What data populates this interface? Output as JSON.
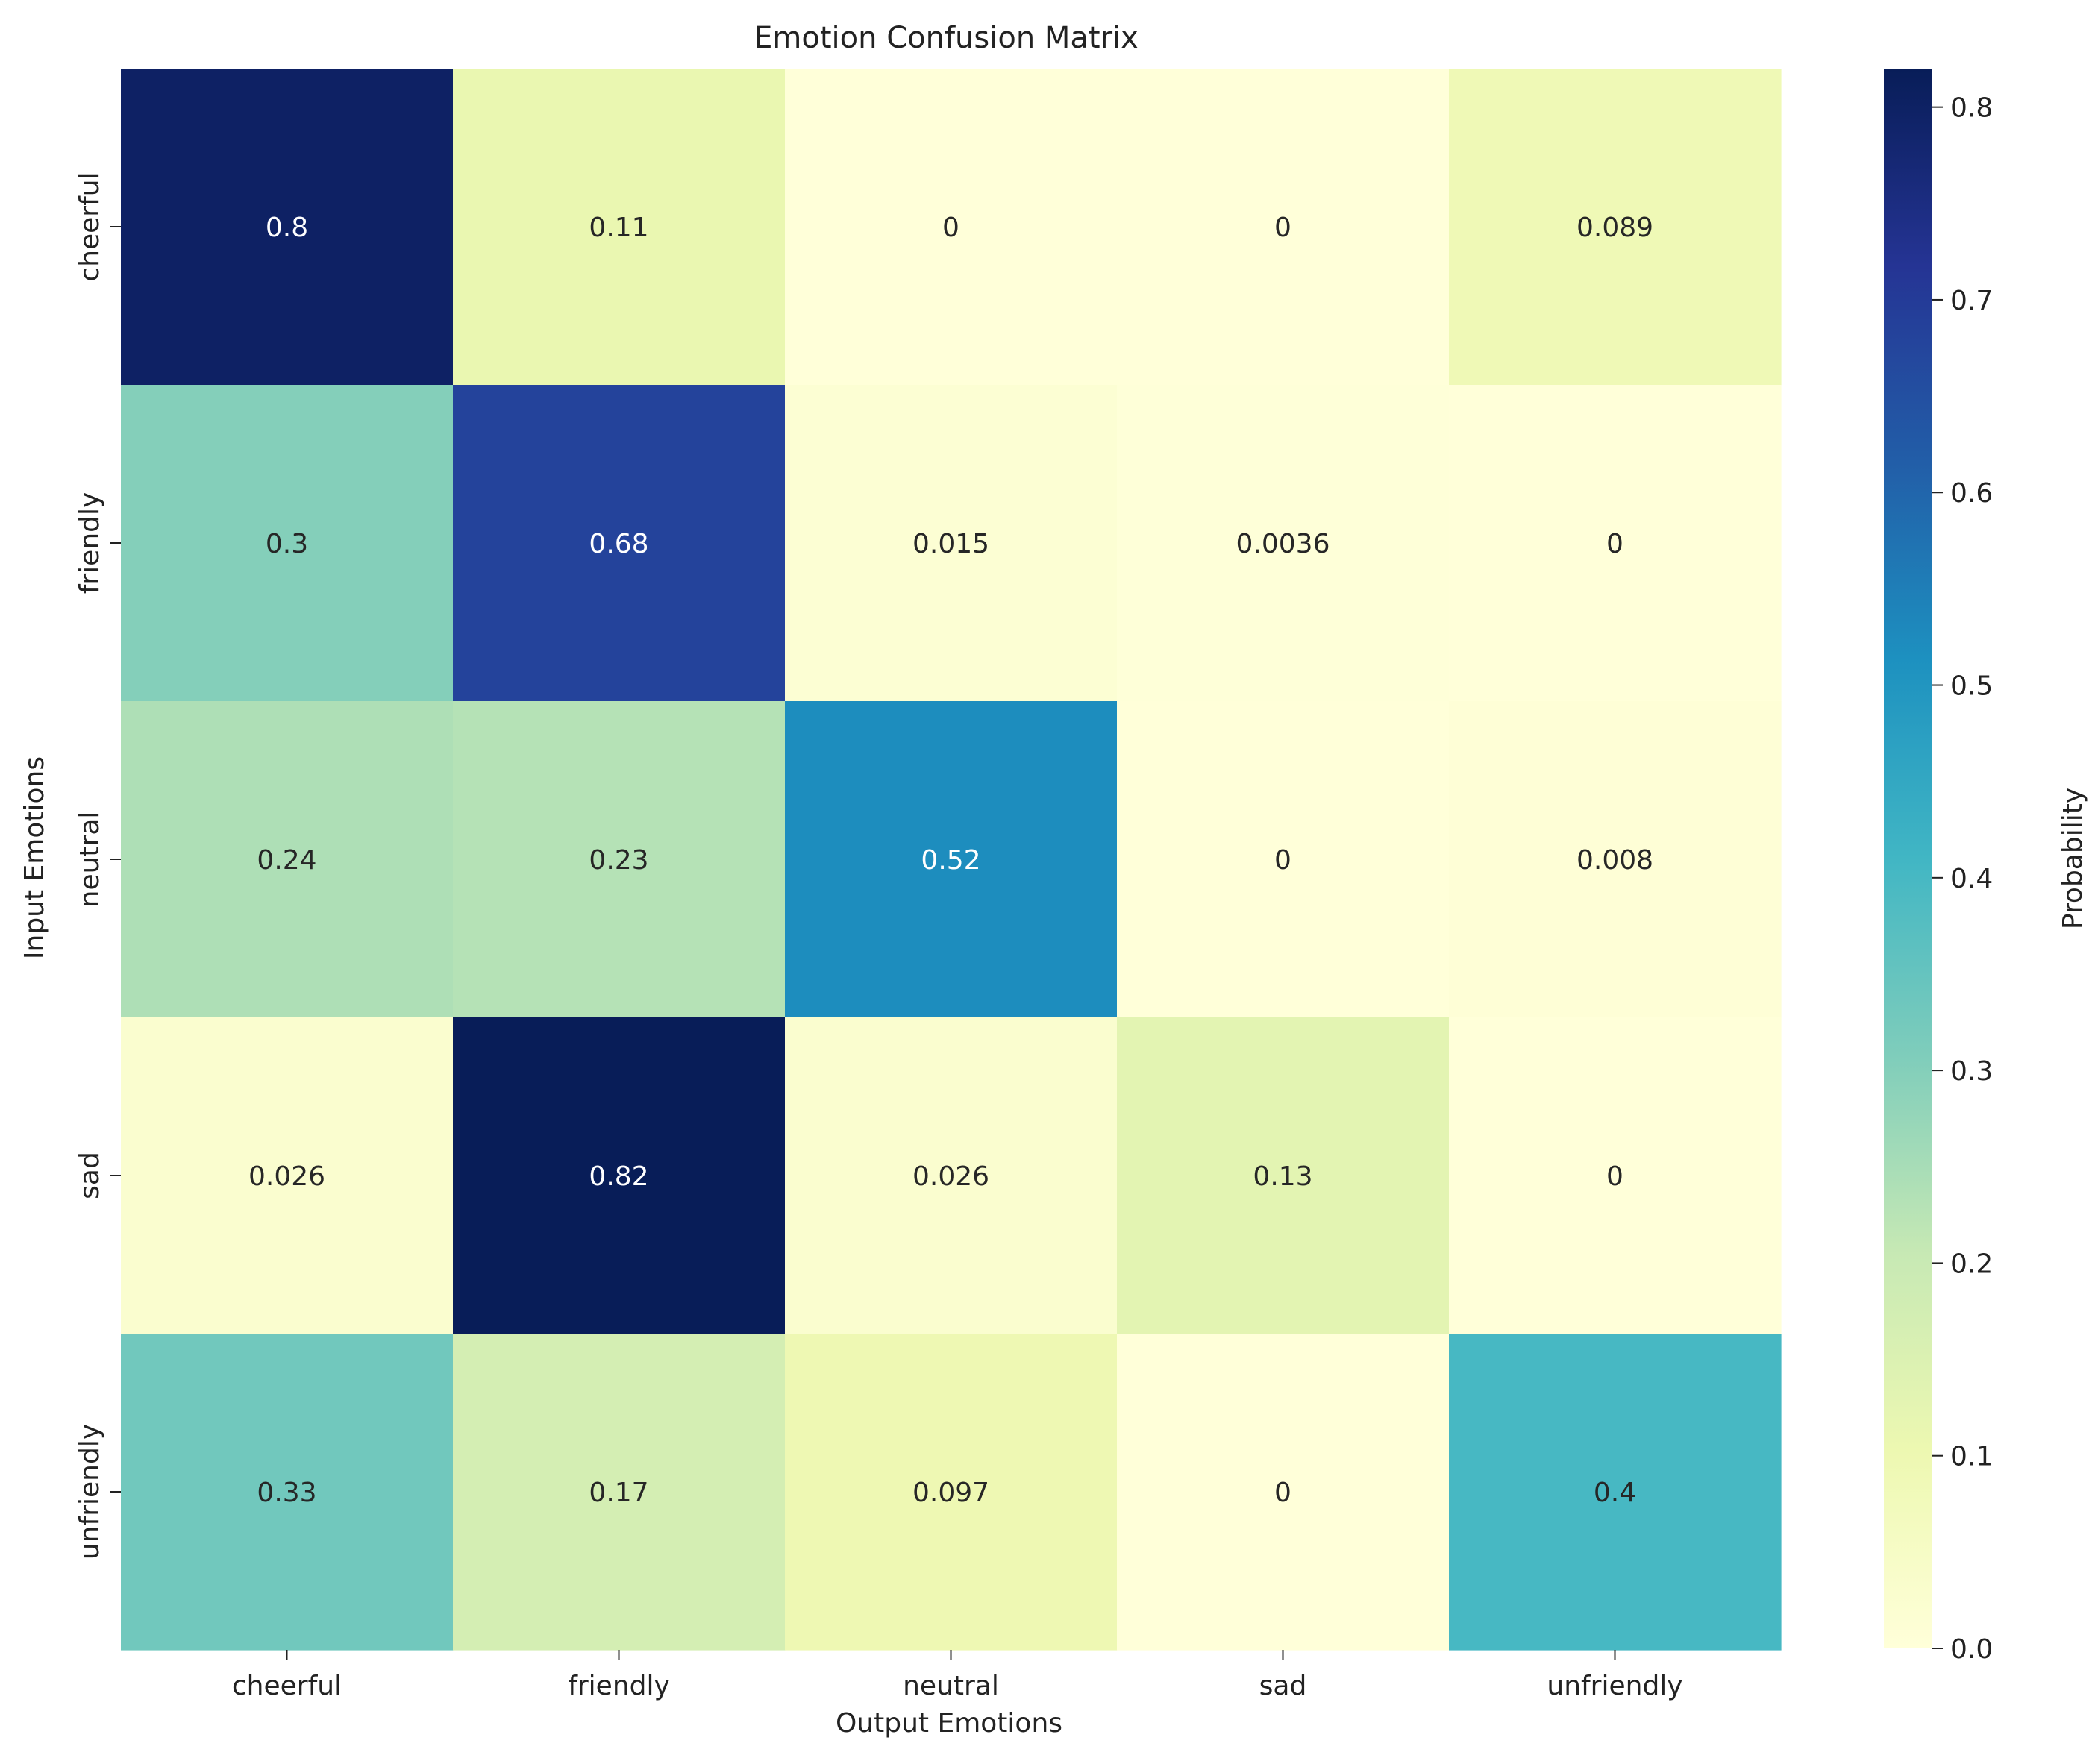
{
  "chart_data": {
    "type": "heatmap",
    "title": "Emotion Confusion Matrix",
    "xlabel": "Output Emotions",
    "ylabel": "Input Emotions",
    "x_categories": [
      "cheerful",
      "friendly",
      "neutral",
      "sad",
      "unfriendly"
    ],
    "y_categories": [
      "cheerful",
      "friendly",
      "neutral",
      "sad",
      "unfriendly"
    ],
    "values": [
      [
        0.8,
        0.11,
        0,
        0,
        0.089
      ],
      [
        0.3,
        0.68,
        0.015,
        0.0036,
        0
      ],
      [
        0.24,
        0.23,
        0.52,
        0,
        0.008
      ],
      [
        0.026,
        0.82,
        0.026,
        0.13,
        0
      ],
      [
        0.33,
        0.17,
        0.097,
        0,
        0.4
      ]
    ],
    "cell_labels": [
      [
        "0.8",
        "0.11",
        "0",
        "0",
        "0.089"
      ],
      [
        "0.3",
        "0.68",
        "0.015",
        "0.0036",
        "0"
      ],
      [
        "0.24",
        "0.23",
        "0.52",
        "0",
        "0.008"
      ],
      [
        "0.026",
        "0.82",
        "0.026",
        "0.13",
        "0"
      ],
      [
        "0.33",
        "0.17",
        "0.097",
        "0",
        "0.4"
      ]
    ],
    "colormap": "YlGnBu",
    "colorbar": {
      "label": "Probability",
      "range": [
        0,
        0.82
      ],
      "ticks": [
        "0.0",
        "0.1",
        "0.2",
        "0.3",
        "0.4",
        "0.5",
        "0.6",
        "0.7",
        "0.8"
      ]
    },
    "grid": false,
    "legend": "colorbar-right"
  }
}
